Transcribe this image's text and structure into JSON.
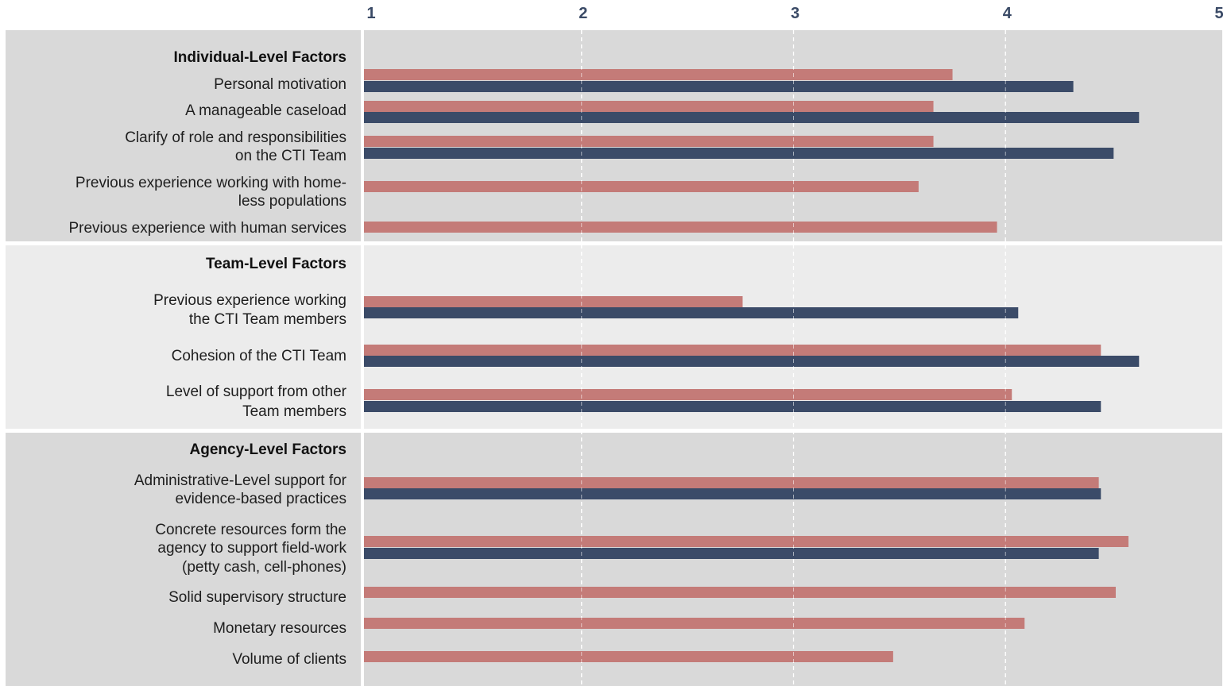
{
  "chart_data": {
    "type": "bar",
    "orientation": "horizontal",
    "xlim": [
      1,
      5
    ],
    "x_ticks": [
      "1",
      "2",
      "3",
      "4",
      "5"
    ],
    "grid": "vertical dashed",
    "legend": "none",
    "colors": {
      "series_a": "#c47b78",
      "series_b": "#3b4b68",
      "panel_dark": "#d9d9d9",
      "panel_light": "#ececec",
      "label_divider": "#ffffff"
    },
    "series": [
      {
        "color_key": "series_a"
      },
      {
        "color_key": "series_b"
      }
    ],
    "sections": [
      {
        "title": "Individual-Level Factors",
        "categories": [
          {
            "label": [
              "Personal motivation"
            ],
            "values": [
              3.75,
              4.32
            ]
          },
          {
            "label": [
              "A manageable caseload"
            ],
            "values": [
              3.66,
              4.63
            ]
          },
          {
            "label": [
              "Clarify of role and responsibilities",
              "on the CTI Team"
            ],
            "values": [
              3.66,
              4.51
            ]
          },
          {
            "label": [
              "Previous experience working with home-",
              "less populations"
            ],
            "values": [
              3.59,
              null
            ]
          },
          {
            "label": [
              "Previous experience with human services"
            ],
            "values": [
              3.96,
              null
            ]
          }
        ]
      },
      {
        "title": "Team-Level Factors",
        "categories": [
          {
            "label": [
              "Previous experience working",
              "the CTI Team members"
            ],
            "values": [
              2.76,
              4.06
            ]
          },
          {
            "label": [
              "Cohesion of the CTI Team"
            ],
            "values": [
              4.45,
              4.63
            ]
          },
          {
            "label": [
              "Level of support from other",
              "Team members"
            ],
            "values": [
              4.03,
              4.45
            ]
          }
        ]
      },
      {
        "title": "Agency-Level Factors",
        "categories": [
          {
            "label": [
              "Administrative-Level support for",
              "evidence-based practices"
            ],
            "values": [
              4.44,
              4.45
            ]
          },
          {
            "label": [
              "Concrete resources form the",
              "agency to support field-work",
              "(petty cash, cell-phones)"
            ],
            "values": [
              4.58,
              4.44
            ]
          },
          {
            "label": [
              "Solid supervisory structure"
            ],
            "values": [
              4.52,
              null
            ]
          },
          {
            "label": [
              "Monetary resources"
            ],
            "values": [
              4.09,
              null
            ]
          },
          {
            "label": [
              "Volume of clients"
            ],
            "values": [
              3.47,
              null
            ]
          }
        ]
      }
    ]
  }
}
